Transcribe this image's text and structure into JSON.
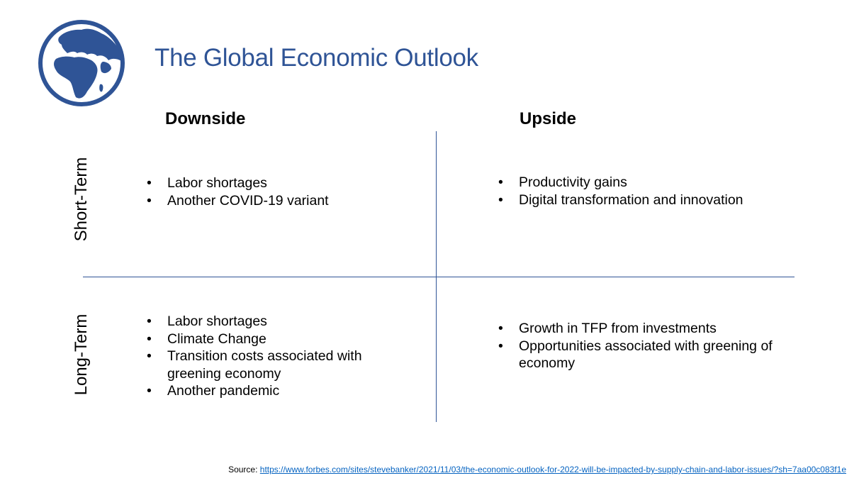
{
  "title": "The Global Economic Outlook",
  "icon": "globe-icon",
  "colors": {
    "accent": "#2f5496",
    "link": "#0563c1"
  },
  "columns": {
    "downside": "Downside",
    "upside": "Upside"
  },
  "rows": {
    "short_term": "Short-Term",
    "long_term": "Long-Term"
  },
  "quadrants": {
    "short_downside": [
      "Labor shortages",
      "Another COVID-19 variant"
    ],
    "short_upside": [
      "Productivity gains",
      "Digital transformation and innovation"
    ],
    "long_downside": [
      "Labor shortages",
      "Climate Change",
      "Transition costs associated with greening economy",
      "Another pandemic"
    ],
    "long_upside": [
      "Growth in TFP from investments",
      "Opportunities associated with greening of economy"
    ]
  },
  "source": {
    "label": "Source: ",
    "url": "https://www.forbes.com/sites/stevebanker/2021/11/03/the-economic-outlook-for-2022-will-be-impacted-by-supply-chain-and-labor-issues/?sh=7aa00c083f1e"
  }
}
